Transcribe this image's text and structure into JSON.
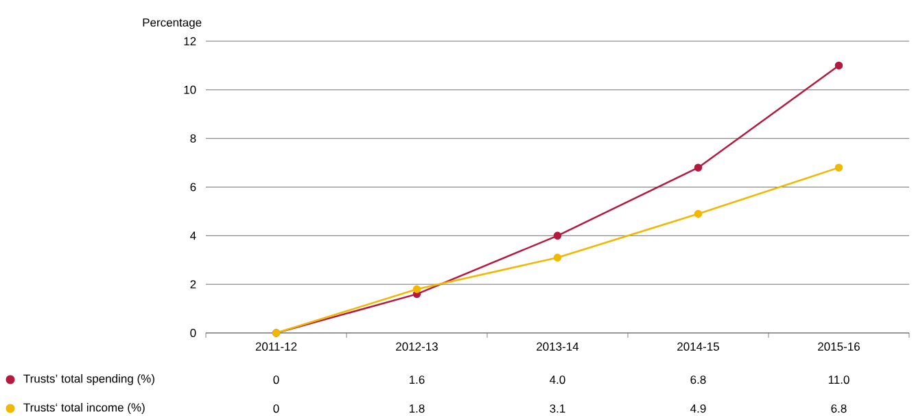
{
  "chart_data": {
    "type": "line",
    "ylabel": "Percentage",
    "categories": [
      "2011-12",
      "2012-13",
      "2013-14",
      "2014-15",
      "2015-16"
    ],
    "series": [
      {
        "name": "Trusts’ total spending (%)",
        "color": "#b5193e",
        "values": [
          0,
          1.6,
          4.0,
          6.8,
          11.0
        ],
        "value_labels": [
          "0",
          "1.6",
          "4.0",
          "6.8",
          "11.0"
        ]
      },
      {
        "name": "Trusts‘ total income (%)",
        "color": "#f0b800",
        "values": [
          0,
          1.8,
          3.1,
          4.9,
          6.8
        ],
        "value_labels": [
          "0",
          "1.8",
          "3.1",
          "4.9",
          "6.8"
        ]
      }
    ],
    "ylim": [
      0,
      12
    ],
    "yticks": [
      0,
      2,
      4,
      6,
      8,
      10,
      12
    ],
    "grid": "y",
    "legend": "bottom left",
    "marker": "circle",
    "line_style": "solid"
  }
}
